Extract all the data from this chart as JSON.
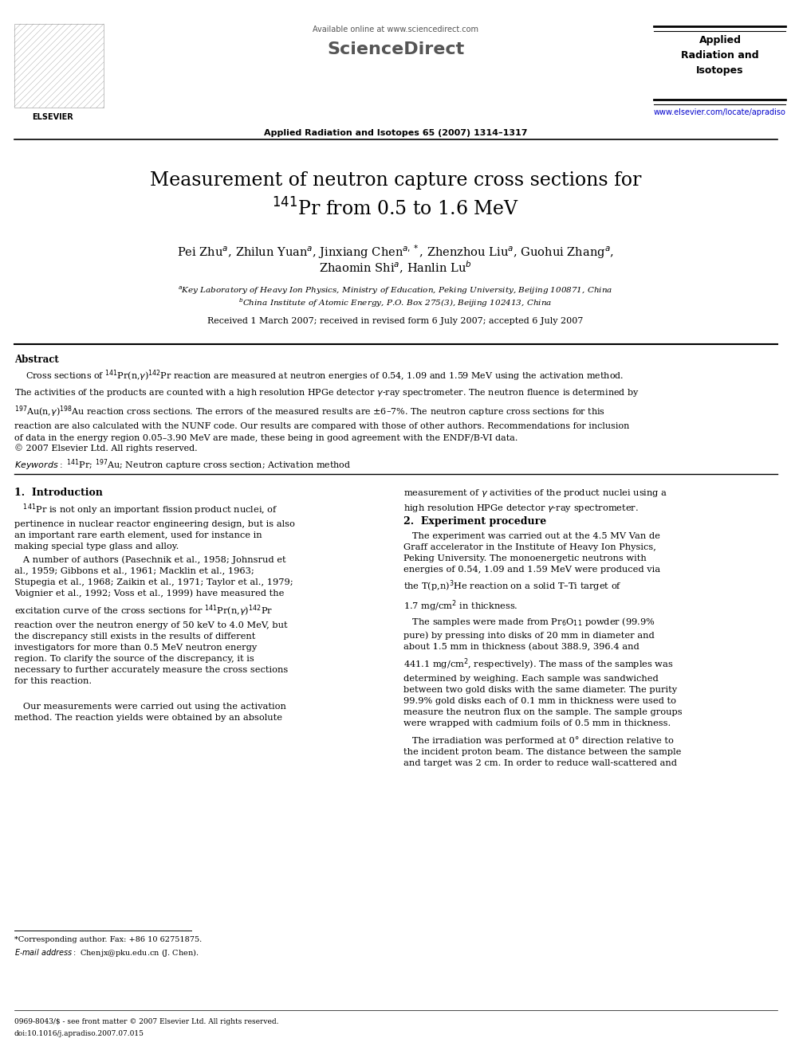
{
  "title_line1": "Measurement of neutron capture cross sections for",
  "title_line2": "$^{141}$Pr from 0.5 to 1.6 MeV",
  "authors_line1": "Pei Zhu$^{a}$, Zhilun Yuan$^{a}$, Jinxiang Chen$^{a,*}$, Zhenzhou Liu$^{a}$, Guohui Zhang$^{a}$,",
  "authors_line2": "Zhaomin Shi$^{a}$, Hanlin Lu$^{b}$",
  "affil_a": "$^{a}$Key Laboratory of Heavy Ion Physics, Ministry of Education, Peking University, Beijing 100871, China",
  "affil_b": "$^{b}$China Institute of Atomic Energy, P.O. Box 275(3), Beijing 102413, China",
  "received": "Received 1 March 2007; received in revised form 6 July 2007; accepted 6 July 2007",
  "journal_header": "Applied Radiation and Isotopes 65 (2007) 1314–1317",
  "available_online": "Available online at www.sciencedirect.com",
  "journal_name": "Applied\nRadiation and\nIsotopes",
  "url": "www.elsevier.com/locate/apradiso",
  "copyright_line": "© 2007 Elsevier Ltd. All rights reserved.",
  "abstract_title": "Abstract",
  "keywords_text": "$^{141}$Pr; $^{197}$Au; Neutron capture cross section; Activation method",
  "section1_title": "1.  Introduction",
  "section2_title": "2.  Experiment procedure",
  "footnote_corresp": "*Corresponding author. Fax: +86 10 62751875.",
  "footnote_email": "E-mail address: Chenjx@pku.edu.cn (J. Chen).",
  "footer_issn": "0969-8043/$ - see front matter © 2007 Elsevier Ltd. All rights reserved.",
  "footer_doi": "doi:10.1016/j.apradiso.2007.07.015",
  "bg_color": "#ffffff",
  "text_color": "#000000",
  "link_color": "#0000cc"
}
